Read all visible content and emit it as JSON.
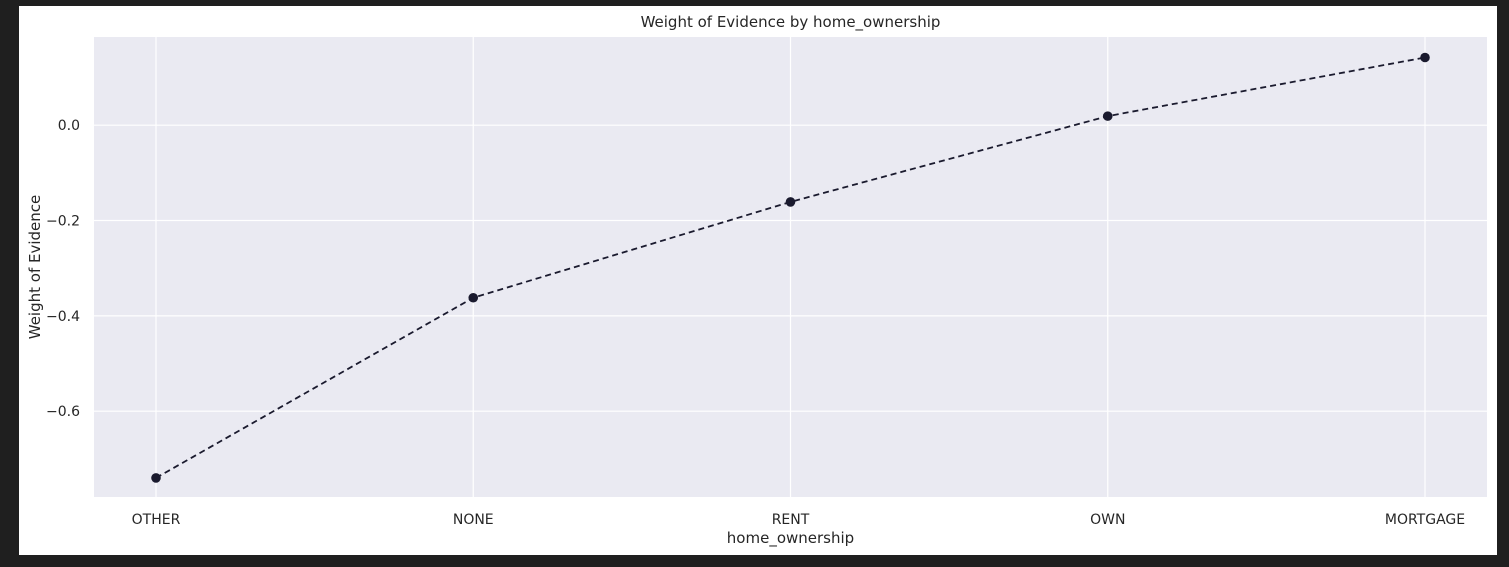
{
  "chart_data": {
    "type": "line",
    "title": "Weight of Evidence by home_ownership",
    "xlabel": "home_ownership",
    "ylabel": "Weight of Evidence",
    "categories": [
      "OTHER",
      "NONE",
      "RENT",
      "OWN",
      "MORTGAGE"
    ],
    "series": [
      {
        "values": [
          -0.74,
          -0.362,
          -0.161,
          0.019,
          0.142
        ]
      }
    ],
    "ylim": [
      -0.78,
      0.185
    ],
    "yticks": [
      0.0,
      -0.2,
      -0.4,
      -0.6
    ],
    "ytick_labels": [
      "0.0",
      "−0.2",
      "−0.4",
      "−0.6"
    ],
    "grid": true,
    "line_style": "dashed",
    "marker": "circle",
    "colors": {
      "plot_background": "#eaeaf2",
      "grid": "#ffffff",
      "line": "#1a1a2e",
      "text": "#262626",
      "frame": "#1f1f1f"
    }
  }
}
